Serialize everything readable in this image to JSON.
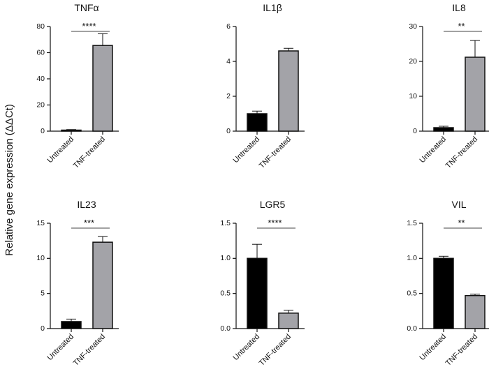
{
  "figure": {
    "ylabel": "Relative gene expression (ΔΔCt)",
    "categories": [
      "Untreated",
      "TNF-treated"
    ],
    "colors": {
      "untreated": "#000000",
      "treated": "#a3a3a8",
      "axis": "#111111"
    }
  },
  "chart_data": [
    {
      "type": "bar",
      "title": "TNFα",
      "categories": [
        "Untreated",
        "TNF-treated"
      ],
      "values": [
        0.8,
        65.5
      ],
      "error": [
        0.4,
        9.0
      ],
      "ylim": [
        0,
        80
      ],
      "yticks": [
        0,
        20,
        40,
        60,
        80
      ],
      "tick_labels": [
        "0",
        "20",
        "40",
        "60",
        "80"
      ],
      "significance": "****"
    },
    {
      "type": "bar",
      "title": "IL1β",
      "categories": [
        "Untreated",
        "TNF-treated"
      ],
      "values": [
        1.0,
        4.6
      ],
      "error": [
        0.15,
        0.15
      ],
      "ylim": [
        0,
        6
      ],
      "yticks": [
        0,
        2,
        4,
        6
      ],
      "tick_labels": [
        "0",
        "2",
        "4",
        "6"
      ],
      "significance": ""
    },
    {
      "type": "bar",
      "title": "IL8",
      "categories": [
        "Untreated",
        "TNF-treated"
      ],
      "values": [
        1.0,
        21.2
      ],
      "error": [
        0.4,
        4.8
      ],
      "ylim": [
        0,
        30
      ],
      "yticks": [
        0,
        10,
        20,
        30
      ],
      "tick_labels": [
        "0",
        "10",
        "20",
        "30"
      ],
      "significance": "**"
    },
    {
      "type": "bar",
      "title": "IL23",
      "categories": [
        "Untreated",
        "TNF-treated"
      ],
      "values": [
        1.0,
        12.3
      ],
      "error": [
        0.35,
        0.8
      ],
      "ylim": [
        0,
        15
      ],
      "yticks": [
        0,
        5,
        10,
        15
      ],
      "tick_labels": [
        "0",
        "5",
        "10",
        "15"
      ],
      "significance": "***"
    },
    {
      "type": "bar",
      "title": "LGR5",
      "categories": [
        "Untreated",
        "TNF-treated"
      ],
      "values": [
        1.0,
        0.22
      ],
      "error": [
        0.2,
        0.04
      ],
      "ylim": [
        0,
        1.5
      ],
      "yticks": [
        0,
        0.5,
        1.0,
        1.5
      ],
      "tick_labels": [
        "0.0",
        "0.5",
        "1.0",
        "1.5"
      ],
      "significance": "****"
    },
    {
      "type": "bar",
      "title": "VIL",
      "categories": [
        "Untreated",
        "TNF-treated"
      ],
      "values": [
        1.0,
        0.47
      ],
      "error": [
        0.03,
        0.02
      ],
      "ylim": [
        0,
        1.5
      ],
      "yticks": [
        0,
        0.5,
        1.0,
        1.5
      ],
      "tick_labels": [
        "0.0",
        "0.5",
        "1.0",
        "1.5"
      ],
      "significance": "**"
    }
  ]
}
